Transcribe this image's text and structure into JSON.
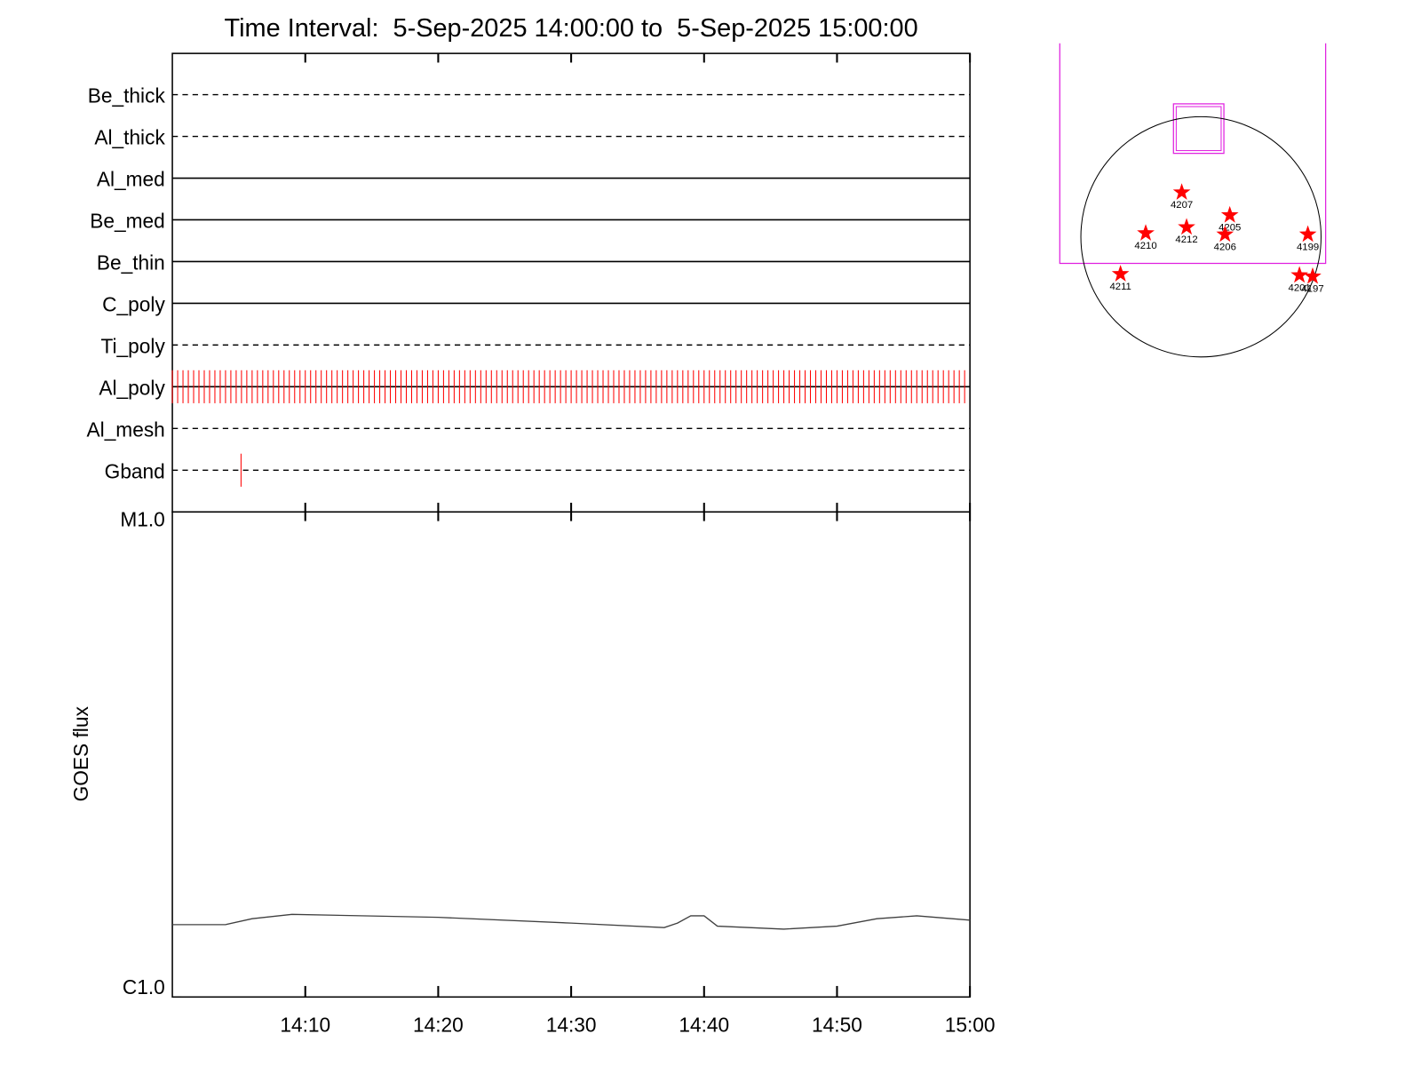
{
  "chart_data": [
    {
      "type": "event",
      "title": "Time Interval:  5-Sep-2025 14:00:00 to  5-Sep-2025 15:00:00",
      "categories": [
        "Be_thick",
        "Al_thick",
        "Al_med",
        "Be_med",
        "Be_thin",
        "C_poly",
        "Ti_poly",
        "Al_poly",
        "Al_mesh",
        "Gband"
      ],
      "line_styles": [
        "dashed",
        "dashed",
        "solid",
        "solid",
        "solid",
        "solid",
        "dashed",
        "solid",
        "dashed",
        "dashed"
      ],
      "event_color": "#ff0000",
      "events": [
        [],
        [],
        [],
        [],
        [],
        [],
        [],
        [
          "14:00:00",
          "14:00:24",
          "14:00:48",
          "14:01:12",
          "14:01:36",
          "14:02:00",
          "14:02:24",
          "14:02:48",
          "14:03:12",
          "14:03:36",
          "14:04:00",
          "14:04:24",
          "14:04:48",
          "14:05:12",
          "14:05:36",
          "14:06:00",
          "14:06:24",
          "14:06:48",
          "14:07:12",
          "14:07:36",
          "14:08:00",
          "14:08:24",
          "14:08:48",
          "14:09:12",
          "14:09:36",
          "14:10:00",
          "14:10:24",
          "14:10:48",
          "14:11:12",
          "14:11:36",
          "14:12:00",
          "14:12:24",
          "14:12:48",
          "14:13:12",
          "14:13:36",
          "14:14:00",
          "14:14:24",
          "14:14:48",
          "14:15:12",
          "14:15:36",
          "14:16:00",
          "14:16:24",
          "14:16:48",
          "14:17:12",
          "14:17:36",
          "14:18:00",
          "14:18:24",
          "14:18:48",
          "14:19:12",
          "14:19:36",
          "14:20:00",
          "14:20:24",
          "14:20:48",
          "14:21:12",
          "14:21:36",
          "14:22:00",
          "14:22:24",
          "14:22:48",
          "14:23:12",
          "14:23:36",
          "14:24:00",
          "14:24:24",
          "14:24:48",
          "14:25:12",
          "14:25:36",
          "14:26:00",
          "14:26:24",
          "14:26:48",
          "14:27:12",
          "14:27:36",
          "14:28:00",
          "14:28:24",
          "14:28:48",
          "14:29:12",
          "14:29:36",
          "14:30:00",
          "14:30:24",
          "14:30:48",
          "14:31:12",
          "14:31:36",
          "14:32:00",
          "14:32:24",
          "14:32:48",
          "14:33:12",
          "14:33:36",
          "14:34:00",
          "14:34:24",
          "14:34:48",
          "14:35:12",
          "14:35:36",
          "14:36:00",
          "14:36:24",
          "14:36:48",
          "14:37:12",
          "14:37:36",
          "14:38:00",
          "14:38:24",
          "14:38:48",
          "14:39:12",
          "14:39:36",
          "14:40:00",
          "14:40:24",
          "14:40:48",
          "14:41:12",
          "14:41:36",
          "14:42:00",
          "14:42:24",
          "14:42:48",
          "14:43:12",
          "14:43:36",
          "14:44:00",
          "14:44:24",
          "14:44:48",
          "14:45:12",
          "14:45:36",
          "14:46:00",
          "14:46:24",
          "14:46:48",
          "14:47:12",
          "14:47:36",
          "14:48:00",
          "14:48:24",
          "14:48:48",
          "14:49:12",
          "14:49:36",
          "14:50:00",
          "14:50:24",
          "14:50:48",
          "14:51:12",
          "14:51:36",
          "14:52:00",
          "14:52:24",
          "14:52:48",
          "14:53:12",
          "14:53:36",
          "14:54:00",
          "14:54:24",
          "14:54:48",
          "14:55:12",
          "14:55:36",
          "14:56:00",
          "14:56:24",
          "14:56:48",
          "14:57:12",
          "14:57:36",
          "14:58:00",
          "14:58:24",
          "14:58:48",
          "14:59:12",
          "14:59:36"
        ],
        [],
        [
          "14:05:10"
        ]
      ],
      "xlim": [
        "14:00",
        "15:00"
      ],
      "xticks": [
        "14:10",
        "14:20",
        "14:30",
        "14:40",
        "14:50",
        "15:00"
      ]
    },
    {
      "type": "line",
      "ylabel": "GOES flux",
      "x": [
        "14:00",
        "14:04",
        "14:06",
        "14:09",
        "14:20",
        "14:30",
        "14:37",
        "14:38",
        "14:39",
        "14:40",
        "14:41",
        "14:46",
        "14:50",
        "14:53",
        "14:56",
        "15:00"
      ],
      "values": [
        1.41e-06,
        1.41e-06,
        1.45e-06,
        1.48e-06,
        1.46e-06,
        1.42e-06,
        1.39e-06,
        1.42e-06,
        1.47e-06,
        1.47e-06,
        1.4e-06,
        1.38e-06,
        1.4e-06,
        1.45e-06,
        1.47e-06,
        1.44e-06
      ],
      "color": "#404040",
      "log_y": true,
      "ylim": [
        1e-06,
        1e-05
      ],
      "yticks": [
        {
          "value": 1e-06,
          "label": "C1.0"
        },
        {
          "value": 1e-05,
          "label": "M1.0"
        }
      ],
      "xlim": [
        "14:00",
        "15:00"
      ],
      "xticks": [
        "14:10",
        "14:20",
        "14:30",
        "14:40",
        "14:50",
        "15:00"
      ]
    },
    {
      "type": "scatter",
      "labels": [
        "4207",
        "4205",
        "4212",
        "4206",
        "4210",
        "4199",
        "4211",
        "4201",
        "4197"
      ],
      "x": [
        -0.16,
        0.24,
        -0.12,
        0.2,
        -0.46,
        0.89,
        -0.67,
        0.82,
        0.93
      ],
      "y": [
        0.37,
        0.18,
        0.08,
        0.02,
        0.03,
        0.02,
        -0.31,
        -0.32,
        -0.33
      ],
      "color": "#ff0000",
      "xlim": [
        -1,
        1
      ],
      "ylim": [
        -1,
        1
      ]
    }
  ]
}
